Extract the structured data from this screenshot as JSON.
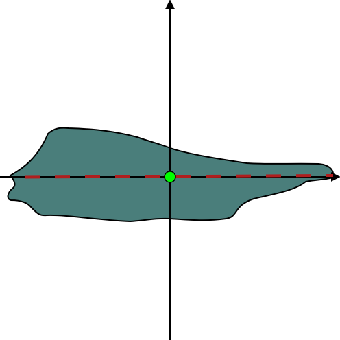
{
  "colors": {
    "background": "#ffffff",
    "shape_fill": "#4a7e7b",
    "shape_stroke": "#000000",
    "axis": "#000000",
    "dashed_line": "#b01e1e",
    "origin_point": "#00ff00"
  },
  "diagram": {
    "elements": [
      "x-axis",
      "y-axis",
      "region",
      "dashed-horizontal-line",
      "origin-point"
    ]
  }
}
